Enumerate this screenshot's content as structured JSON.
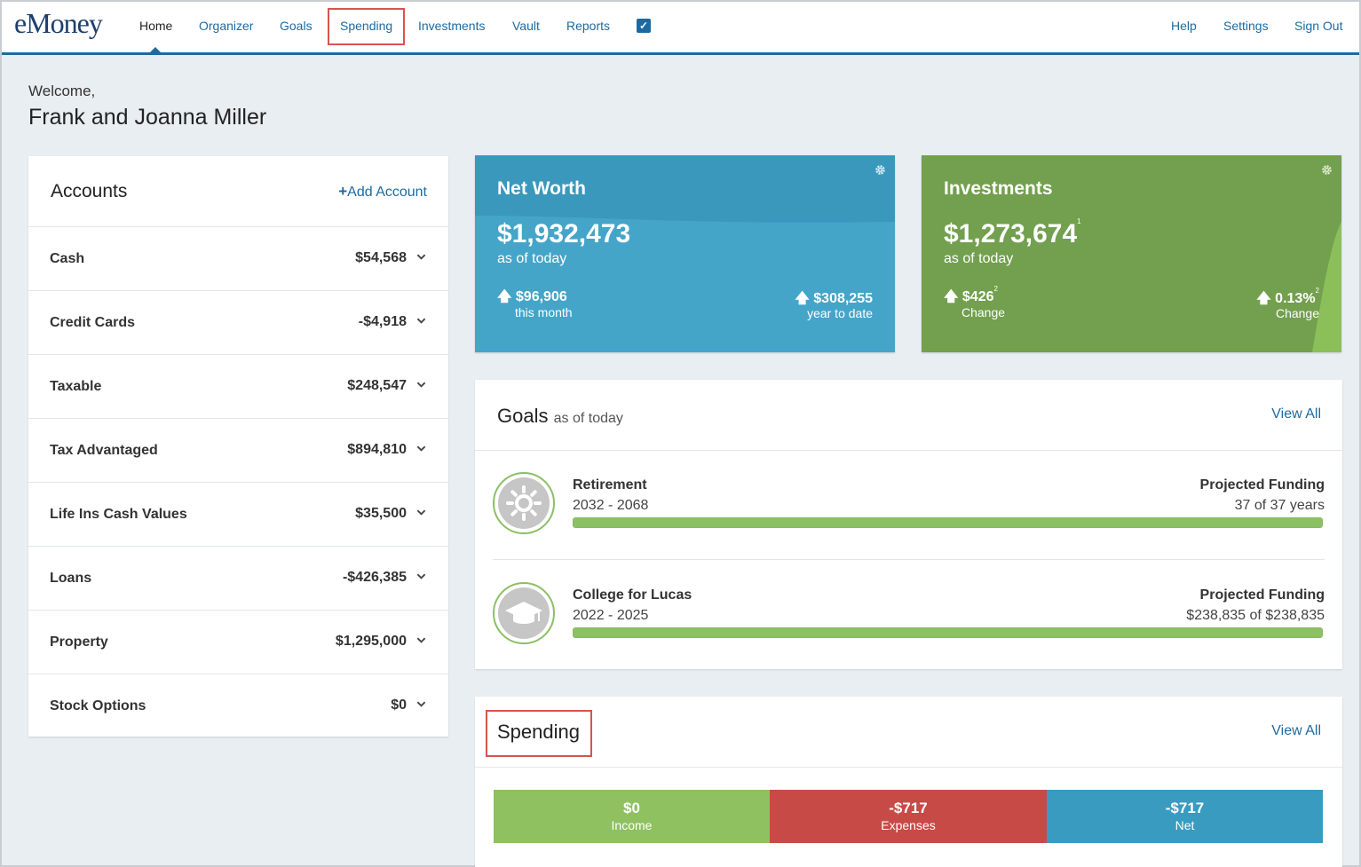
{
  "brand": "eMoney",
  "nav": {
    "items": [
      "Home",
      "Organizer",
      "Goals",
      "Spending",
      "Investments",
      "Vault",
      "Reports"
    ],
    "right": [
      "Help",
      "Settings",
      "Sign Out"
    ]
  },
  "welcome": {
    "greeting": "Welcome,",
    "name": "Frank and Joanna Miller"
  },
  "accounts": {
    "title": "Accounts",
    "add_label": "Add Account",
    "rows": [
      {
        "label": "Cash",
        "value": "$54,568"
      },
      {
        "label": "Credit Cards",
        "value": "-$4,918"
      },
      {
        "label": "Taxable",
        "value": "$248,547"
      },
      {
        "label": "Tax Advantaged",
        "value": "$894,810"
      },
      {
        "label": "Life Ins Cash Values",
        "value": "$35,500"
      },
      {
        "label": "Loans",
        "value": "-$426,385"
      },
      {
        "label": "Property",
        "value": "$1,295,000"
      },
      {
        "label": "Stock Options",
        "value": "$0"
      }
    ]
  },
  "networth": {
    "title": "Net Worth",
    "amount": "$1,932,473",
    "as_of": "as of today",
    "left_value": "$96,906",
    "left_label": "this month",
    "right_value": "$308,255",
    "right_label": "year to date",
    "color": "#44a5c9"
  },
  "investments": {
    "title": "Investments",
    "amount": "$1,273,674",
    "amount_note": "1",
    "as_of": "as of today",
    "left_value": "$426",
    "left_note": "2",
    "left_label": "Change",
    "right_value": "0.13%",
    "right_note": "2",
    "right_label": "Change",
    "color": "#72a04e"
  },
  "goals": {
    "title": "Goals",
    "subtitle": "as of today",
    "view_all": "View All",
    "items": [
      {
        "name": "Retirement",
        "years": "2032 - 2068",
        "proj_label": "Projected Funding",
        "proj_value": "37 of 37 years",
        "funded": 1.0,
        "icon": "sun-icon"
      },
      {
        "name": "College for Lucas",
        "years": "2022 - 2025",
        "proj_label": "Projected Funding",
        "proj_value": "$238,835 of $238,835",
        "funded": 1.0,
        "icon": "graduation-cap-icon"
      }
    ]
  },
  "spending": {
    "title": "Spending",
    "view_all": "View All",
    "bars": [
      {
        "value": "$0",
        "label": "Income",
        "color": "#8fc160"
      },
      {
        "value": "-$717",
        "label": "Expenses",
        "color": "#c84a46"
      },
      {
        "value": "-$717",
        "label": "Net",
        "color": "#3a9bc0"
      }
    ]
  }
}
